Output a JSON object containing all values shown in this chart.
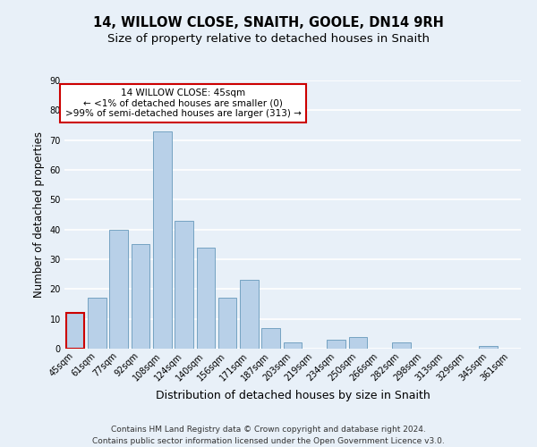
{
  "title": "14, WILLOW CLOSE, SNAITH, GOOLE, DN14 9RH",
  "subtitle": "Size of property relative to detached houses in Snaith",
  "xlabel": "Distribution of detached houses by size in Snaith",
  "ylabel": "Number of detached properties",
  "categories": [
    "45sqm",
    "61sqm",
    "77sqm",
    "92sqm",
    "108sqm",
    "124sqm",
    "140sqm",
    "156sqm",
    "171sqm",
    "187sqm",
    "203sqm",
    "219sqm",
    "234sqm",
    "250sqm",
    "266sqm",
    "282sqm",
    "298sqm",
    "313sqm",
    "329sqm",
    "345sqm",
    "361sqm"
  ],
  "values": [
    12,
    17,
    40,
    35,
    73,
    43,
    34,
    17,
    23,
    7,
    2,
    0,
    3,
    4,
    0,
    2,
    0,
    0,
    0,
    1,
    0
  ],
  "bar_color": "#b8d0e8",
  "bar_edge_color": "#6699bb",
  "highlight_color": "#cc0000",
  "annotation_title": "14 WILLOW CLOSE: 45sqm",
  "annotation_line1": "← <1% of detached houses are smaller (0)",
  "annotation_line2": ">99% of semi-detached houses are larger (313) →",
  "annotation_box_color": "#ffffff",
  "annotation_box_edge": "#cc0000",
  "ylim": [
    0,
    90
  ],
  "yticks": [
    0,
    10,
    20,
    30,
    40,
    50,
    60,
    70,
    80,
    90
  ],
  "footer_line1": "Contains HM Land Registry data © Crown copyright and database right 2024.",
  "footer_line2": "Contains public sector information licensed under the Open Government Licence v3.0.",
  "background_color": "#e8f0f8",
  "plot_background": "#e8f0f8",
  "grid_color": "#ffffff",
  "title_fontsize": 10.5,
  "subtitle_fontsize": 9.5,
  "xlabel_fontsize": 9,
  "ylabel_fontsize": 8.5,
  "tick_fontsize": 7,
  "footer_fontsize": 6.5,
  "annotation_fontsize": 7.5
}
